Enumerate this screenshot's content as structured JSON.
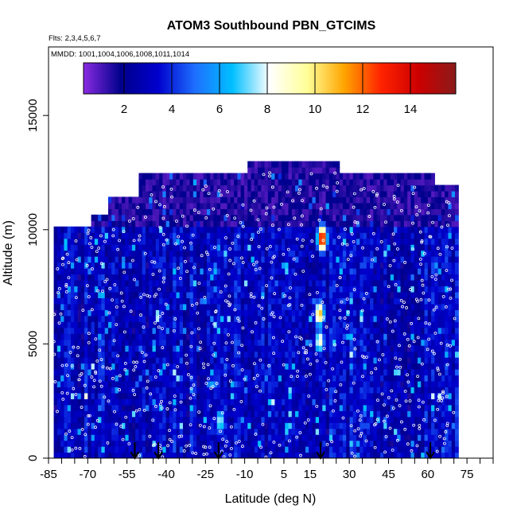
{
  "chart_data": {
    "type": "heatmap",
    "title": "ATOM3 Southbound PBN_GTCIMS",
    "annotations": [
      "Flts: 2,3,4,5,6,7",
      "MMDD: 1001,1004,1006,1008,1011,1014"
    ],
    "xlabel": "Latitude (deg N)",
    "ylabel": "Altitude (m)",
    "xlim": [
      -85,
      85
    ],
    "ylim": [
      0,
      18000
    ],
    "xticks": [
      "-85",
      "-70",
      "-55",
      "-40",
      "-25",
      "-10",
      "5",
      "15",
      "30",
      "45",
      "60",
      "75"
    ],
    "yticks": [
      "0",
      "5000",
      "10000",
      "15000"
    ],
    "colorbar": {
      "range": [
        0.3,
        15.9
      ],
      "ticks": [
        "2",
        "4",
        "6",
        "8",
        "10",
        "12",
        "14"
      ],
      "colors": [
        "#8a2be2",
        "#00008b",
        "#0000cd",
        "#1e6fff",
        "#00bfff",
        "#ffffff",
        "#ffff99",
        "#ffa500",
        "#ff2200",
        "#cc0000",
        "#8b1a1a"
      ]
    },
    "data_extent": {
      "lat": [
        -83,
        71
      ],
      "alt": [
        0,
        12900
      ]
    },
    "hotspots": [
      {
        "lat": 19,
        "alt": 9500,
        "value": 14
      },
      {
        "lat": 18,
        "alt": 6200,
        "value": 11
      },
      {
        "lat": 18,
        "alt": 5000,
        "value": 9
      },
      {
        "lat": -20,
        "alt": 1500,
        "value": 8
      }
    ],
    "arrows_lat": [
      -52,
      -43,
      -20,
      19,
      61
    ]
  }
}
